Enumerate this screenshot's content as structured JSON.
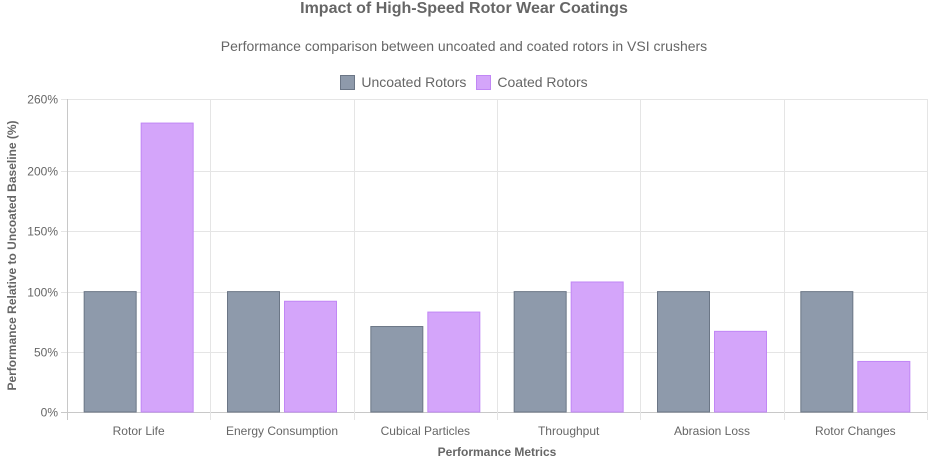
{
  "chart_data": {
    "type": "bar",
    "title": "Impact of High-Speed Rotor Wear Coatings",
    "subtitle": "Performance comparison between uncoated and coated rotors in VSI crushers",
    "xlabel": "Performance Metrics",
    "ylabel": "Performance Relative to Uncoated Baseline (%)",
    "ylim": [
      0,
      260
    ],
    "yticks": [
      0,
      50,
      100,
      150,
      200,
      260
    ],
    "ytick_labels": [
      "0%",
      "50%",
      "100%",
      "150%",
      "200%",
      "260%"
    ],
    "grid": true,
    "legend_position": "top-center",
    "categories": [
      "Rotor Life",
      "Energy Consumption",
      "Cubical Particles",
      "Throughput",
      "Abrasion Loss",
      "Rotor Changes"
    ],
    "series": [
      {
        "name": "Uncoated Rotors",
        "values": [
          100,
          100,
          71,
          100,
          100,
          100
        ],
        "color": "#8e9aab",
        "border": "#6b7686"
      },
      {
        "name": "Coated Rotors",
        "values": [
          240,
          92,
          83,
          108,
          67,
          42
        ],
        "color": "#d4a5fa",
        "border": "#c187f5"
      }
    ]
  }
}
